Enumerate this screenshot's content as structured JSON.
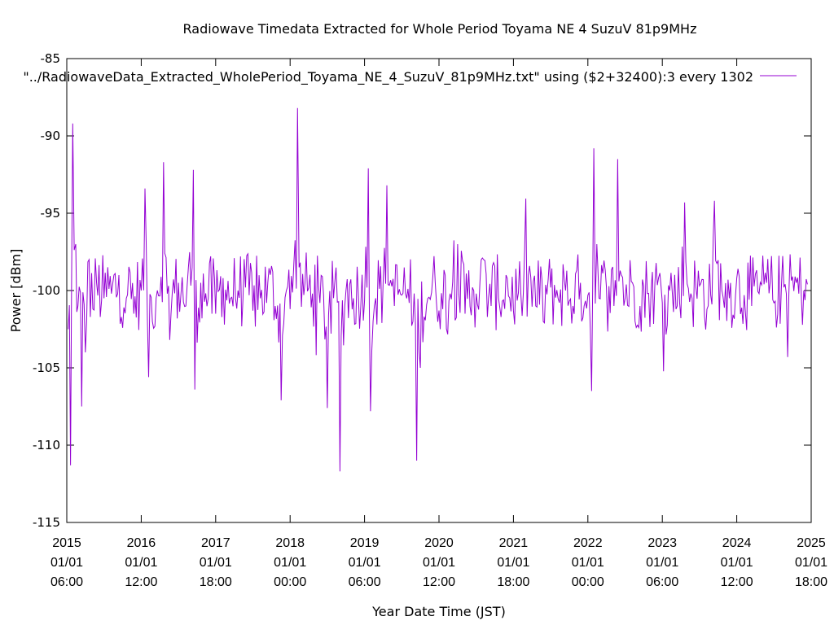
{
  "chart_data": {
    "type": "line",
    "title": "Radiowave Timedata Extracted for Whole Period Toyama NE 4 SuzuV 81p9MHz",
    "xlabel": "Year Date Time (JST)",
    "ylabel": "Power [dBm]",
    "ylim": [
      -115,
      -85
    ],
    "y_ticks": [
      -85,
      -90,
      -95,
      -100,
      -105,
      -110,
      -115
    ],
    "x_ticks": [
      {
        "year": "2015",
        "date": "01/01",
        "time": "06:00"
      },
      {
        "year": "2016",
        "date": "01/01",
        "time": "12:00"
      },
      {
        "year": "2017",
        "date": "01/01",
        "time": "18:00"
      },
      {
        "year": "2018",
        "date": "01/01",
        "time": "00:00"
      },
      {
        "year": "2019",
        "date": "01/01",
        "time": "06:00"
      },
      {
        "year": "2020",
        "date": "01/01",
        "time": "12:00"
      },
      {
        "year": "2021",
        "date": "01/01",
        "time": "18:00"
      },
      {
        "year": "2022",
        "date": "01/01",
        "time": "00:00"
      },
      {
        "year": "2023",
        "date": "01/01",
        "time": "06:00"
      },
      {
        "year": "2024",
        "date": "01/01",
        "time": "12:00"
      },
      {
        "year": "2025",
        "date": "01/01",
        "time": "18:00"
      }
    ],
    "grid": false,
    "legend_position": "top-right",
    "series": [
      {
        "name": "\"../RadiowaveData_Extracted_WholePeriod_Toyama_NE_4_SuzuV_81p9MHz.txt\" using ($2+32400):3 every 1302",
        "color": "#9400d3",
        "x": [
          2015.02,
          2015.05,
          2015.08,
          2015.12,
          2015.15,
          2015.2,
          2015.25,
          2015.3,
          2015.35,
          2015.4,
          2015.5,
          2015.6,
          2015.7,
          2015.8,
          2015.9,
          2016.0,
          2016.05,
          2016.1,
          2016.15,
          2016.2,
          2016.3,
          2016.35,
          2016.4,
          2016.5,
          2016.6,
          2016.7,
          2016.72,
          2016.8,
          2016.9,
          2017.0,
          2017.1,
          2017.2,
          2017.3,
          2017.4,
          2017.5,
          2017.6,
          2017.7,
          2017.8,
          2017.88,
          2017.95,
          2018.0,
          2018.1,
          2018.12,
          2018.2,
          2018.3,
          2018.4,
          2018.5,
          2018.6,
          2018.67,
          2018.75,
          2018.85,
          2018.95,
          2019.05,
          2019.08,
          2019.15,
          2019.25,
          2019.3,
          2019.4,
          2019.5,
          2019.6,
          2019.65,
          2019.7,
          2019.75,
          2019.85,
          2019.95,
          2020.05,
          2020.15,
          2020.25,
          2020.35,
          2020.45,
          2020.5,
          2020.6,
          2020.7,
          2020.8,
          2020.9,
          2021.0,
          2021.1,
          2021.2,
          2021.3,
          2021.4,
          2021.5,
          2021.6,
          2021.7,
          2021.8,
          2021.9,
          2022.0,
          2022.05,
          2022.08,
          2022.12,
          2022.15,
          2022.25,
          2022.35,
          2022.4,
          2022.5,
          2022.6,
          2022.7,
          2022.8,
          2022.9,
          2023.0,
          2023.1,
          2023.2,
          2023.3,
          2023.4,
          2023.5,
          2023.6,
          2023.7,
          2023.8,
          2023.9,
          2024.0,
          2024.1,
          2024.2,
          2024.3,
          2024.4,
          2024.5,
          2024.6,
          2024.7,
          2024.8,
          2024.9,
          2024.95
        ],
        "values": [
          -102.5,
          -111.3,
          -89.2,
          -97,
          -101,
          -107.5,
          -104,
          -98,
          -101.2,
          -99.5,
          -100.5,
          -100.2,
          -99,
          -100.5,
          -101.5,
          -100,
          -93.4,
          -105.6,
          -102,
          -100.5,
          -91.7,
          -100.2,
          -101.5,
          -99.5,
          -101,
          -92.2,
          -106.4,
          -99.5,
          -100.5,
          -101.5,
          -99.2,
          -100.5,
          -100,
          -99.8,
          -101.3,
          -100.5,
          -99.5,
          -101,
          -107.1,
          -100,
          -101.2,
          -88.2,
          -98.5,
          -99.5,
          -100.2,
          -100.8,
          -107.6,
          -99.5,
          -111.7,
          -100,
          -100.5,
          -101,
          -92.1,
          -107.8,
          -100.5,
          -99.5,
          -93.2,
          -101,
          -100.3,
          -100.8,
          -102,
          -111,
          -105,
          -100.5,
          -99.5,
          -101.2,
          -100.2,
          -97,
          -101.5,
          -99.8,
          -100.2,
          -98,
          -101,
          -100.5,
          -99,
          -101.3,
          -100.2,
          -99,
          -101,
          -102,
          -99.8,
          -100.5,
          -100,
          -101,
          -99.5,
          -100.3,
          -106.5,
          -90.8,
          -97,
          -100.5,
          -99.8,
          -101,
          -91.5,
          -100.5,
          -99.5,
          -101,
          -100.2,
          -99.5,
          -100.8,
          -100,
          -101,
          -94.3,
          -100.5,
          -99.7,
          -101.2,
          -94.2,
          -100,
          -100.5,
          -99.2,
          -100.3,
          -101,
          -100.2,
          -99.5,
          -100.8,
          -99.8,
          -100.2,
          -99.5,
          -100,
          -99.6
        ]
      }
    ]
  }
}
